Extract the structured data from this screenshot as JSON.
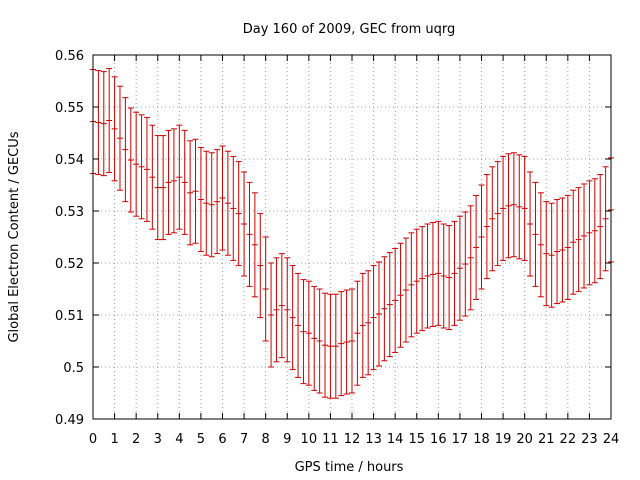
{
  "chart_data": {
    "type": "line",
    "title": "Day 160 of 2009, GEC from uqrg",
    "xlabel": "GPS time / hours",
    "ylabel": "Global Electron Content / GECUs",
    "xlim": [
      0,
      24
    ],
    "ylim": [
      0.49,
      0.56
    ],
    "grid": true,
    "xticks": [
      "0",
      "1",
      "2",
      "3",
      "4",
      "5",
      "6",
      "7",
      "8",
      "9",
      "10",
      "11",
      "12",
      "13",
      "14",
      "15",
      "16",
      "17",
      "18",
      "19",
      "20",
      "21",
      "22",
      "23",
      "24"
    ],
    "yticks": [
      "0.49",
      "0.5",
      "0.51",
      "0.52",
      "0.53",
      "0.54",
      "0.55",
      "0.56"
    ],
    "series": [
      {
        "name": "GEC",
        "color": "#cc0000",
        "error": 0.01,
        "points": [
          [
            0.0,
            0.5472
          ],
          [
            0.25,
            0.547
          ],
          [
            0.5,
            0.5468
          ],
          [
            0.75,
            0.5474
          ],
          [
            1.0,
            0.5458
          ],
          [
            1.25,
            0.544
          ],
          [
            1.5,
            0.5418
          ],
          [
            1.75,
            0.5398
          ],
          [
            2.0,
            0.539
          ],
          [
            2.25,
            0.5385
          ],
          [
            2.5,
            0.538
          ],
          [
            2.75,
            0.5365
          ],
          [
            3.0,
            0.5345
          ],
          [
            3.25,
            0.5345
          ],
          [
            3.5,
            0.5355
          ],
          [
            3.75,
            0.5358
          ],
          [
            4.0,
            0.5365
          ],
          [
            4.25,
            0.5355
          ],
          [
            4.5,
            0.5335
          ],
          [
            4.75,
            0.5338
          ],
          [
            5.0,
            0.5322
          ],
          [
            5.25,
            0.5315
          ],
          [
            5.5,
            0.5312
          ],
          [
            5.75,
            0.5318
          ],
          [
            6.0,
            0.5325
          ],
          [
            6.25,
            0.5315
          ],
          [
            6.5,
            0.5305
          ],
          [
            6.75,
            0.5295
          ],
          [
            7.0,
            0.5275
          ],
          [
            7.25,
            0.5255
          ],
          [
            7.5,
            0.5235
          ],
          [
            7.75,
            0.5195
          ],
          [
            8.0,
            0.515
          ],
          [
            8.25,
            0.51
          ],
          [
            8.5,
            0.511
          ],
          [
            8.75,
            0.5118
          ],
          [
            9.0,
            0.511
          ],
          [
            9.25,
            0.5095
          ],
          [
            9.5,
            0.508
          ],
          [
            9.75,
            0.5068
          ],
          [
            10.0,
            0.5065
          ],
          [
            10.25,
            0.5055
          ],
          [
            10.5,
            0.505
          ],
          [
            10.75,
            0.5042
          ],
          [
            11.0,
            0.504
          ],
          [
            11.25,
            0.504
          ],
          [
            11.5,
            0.5045
          ],
          [
            11.75,
            0.5048
          ],
          [
            12.0,
            0.505
          ],
          [
            12.25,
            0.5065
          ],
          [
            12.5,
            0.508
          ],
          [
            12.75,
            0.5085
          ],
          [
            13.0,
            0.5095
          ],
          [
            13.25,
            0.5102
          ],
          [
            13.5,
            0.5112
          ],
          [
            13.75,
            0.512
          ],
          [
            14.0,
            0.5128
          ],
          [
            14.25,
            0.5138
          ],
          [
            14.5,
            0.5148
          ],
          [
            14.75,
            0.5158
          ],
          [
            15.0,
            0.5165
          ],
          [
            15.25,
            0.517
          ],
          [
            15.5,
            0.5175
          ],
          [
            15.75,
            0.5178
          ],
          [
            16.0,
            0.518
          ],
          [
            16.25,
            0.5175
          ],
          [
            16.5,
            0.5172
          ],
          [
            16.75,
            0.518
          ],
          [
            17.0,
            0.519
          ],
          [
            17.25,
            0.5198
          ],
          [
            17.5,
            0.521
          ],
          [
            17.75,
            0.523
          ],
          [
            18.0,
            0.525
          ],
          [
            18.25,
            0.527
          ],
          [
            18.5,
            0.5285
          ],
          [
            18.75,
            0.5295
          ],
          [
            19.0,
            0.5305
          ],
          [
            19.25,
            0.531
          ],
          [
            19.5,
            0.5312
          ],
          [
            19.75,
            0.5308
          ],
          [
            20.0,
            0.5305
          ],
          [
            20.25,
            0.5275
          ],
          [
            20.5,
            0.5255
          ],
          [
            20.75,
            0.5235
          ],
          [
            21.0,
            0.5218
          ],
          [
            21.25,
            0.5215
          ],
          [
            21.5,
            0.5222
          ],
          [
            21.75,
            0.5225
          ],
          [
            22.0,
            0.523
          ],
          [
            22.25,
            0.524
          ],
          [
            22.5,
            0.5245
          ],
          [
            22.75,
            0.5252
          ],
          [
            23.0,
            0.5258
          ],
          [
            23.25,
            0.5262
          ],
          [
            23.5,
            0.527
          ],
          [
            23.75,
            0.5285
          ],
          [
            24.0,
            0.5302
          ]
        ]
      }
    ]
  }
}
